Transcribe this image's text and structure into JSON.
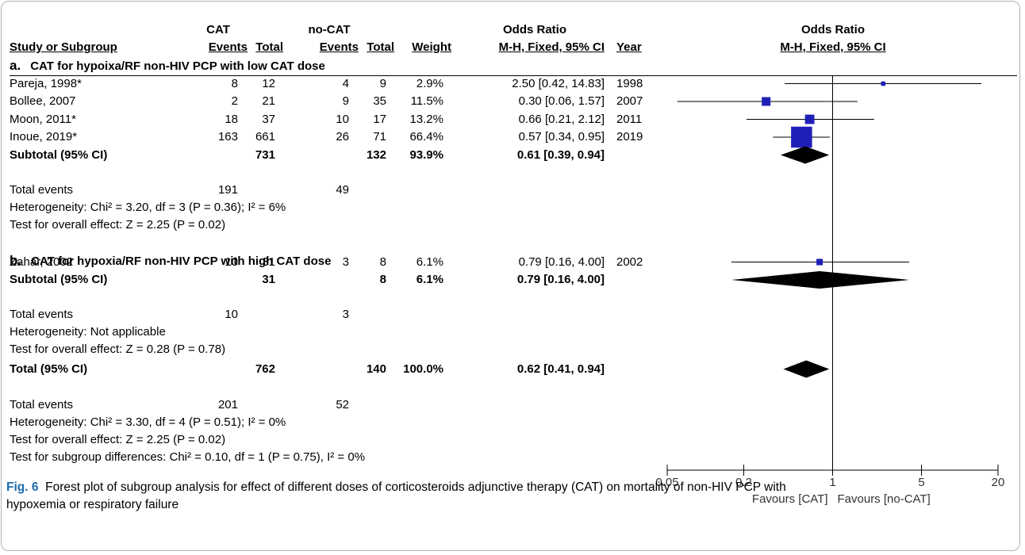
{
  "chart_data": {
    "type": "forest",
    "measure": "Odds Ratio",
    "method": "M-H, Fixed, 95% CI",
    "x_scale": "log",
    "xlim": [
      0.05,
      20
    ],
    "x_ticks": [
      "0.05",
      "0.2",
      "1",
      "5",
      "20"
    ],
    "x_tick_values": [
      0.05,
      0.2,
      1,
      5,
      20
    ],
    "favours_left": "Favours [CAT]",
    "favours_right": "Favours [no-CAT]",
    "colors": {
      "study_marker": "#1f1fb8",
      "diamond": "#000000",
      "ci_line": "#000000"
    },
    "studies": [
      {
        "name": "Pareja, 1998*",
        "e1": "8",
        "t1": "12",
        "e2": "4",
        "t2": "9",
        "weight": "2.9%",
        "ci_text": "2.50 [0.42, 14.83]",
        "year": "1998",
        "or": 2.5,
        "lo": 0.42,
        "hi": 14.83,
        "row": 3,
        "w": 2.9
      },
      {
        "name": "Bollee, 2007",
        "e1": "2",
        "t1": "21",
        "e2": "9",
        "t2": "35",
        "weight": "11.5%",
        "ci_text": "0.30 [0.06, 1.57]",
        "year": "2007",
        "or": 0.3,
        "lo": 0.06,
        "hi": 1.57,
        "row": 4,
        "w": 11.5
      },
      {
        "name": "Moon, 2011*",
        "e1": "18",
        "t1": "37",
        "e2": "10",
        "t2": "17",
        "weight": "13.2%",
        "ci_text": "0.66 [0.21, 2.12]",
        "year": "2011",
        "or": 0.66,
        "lo": 0.21,
        "hi": 2.12,
        "row": 5,
        "w": 13.2
      },
      {
        "name": "Inoue, 2019*",
        "e1": "163",
        "t1": "661",
        "e2": "26",
        "t2": "71",
        "weight": "66.4%",
        "ci_text": "0.57 [0.34, 0.95]",
        "year": "2019",
        "or": 0.57,
        "lo": 0.34,
        "hi": 0.95,
        "row": 6,
        "w": 66.4
      },
      {
        "name": "Zahar, 2002",
        "e1": "10",
        "t1": "31",
        "e2": "3",
        "t2": "8",
        "weight": "6.1%",
        "ci_text": "0.79 [0.16, 4.00]",
        "year": "2002",
        "or": 0.79,
        "lo": 0.16,
        "hi": 4.0,
        "row": 13,
        "w": 6.1
      }
    ],
    "diamonds": [
      {
        "name": "Subtotal (95% CI)",
        "t1": "731",
        "t2": "132",
        "weight": "93.9%",
        "ci_text": "0.61 [0.39, 0.94]",
        "or": 0.61,
        "lo": 0.39,
        "hi": 0.94,
        "row": 7
      },
      {
        "name": "Subtotal (95% CI)",
        "t1": "31",
        "t2": "8",
        "weight": "6.1%",
        "ci_text": "0.79 [0.16, 4.00]",
        "or": 0.79,
        "lo": 0.16,
        "hi": 4.0,
        "row": 14
      },
      {
        "name": "Total (95% CI)",
        "t1": "762",
        "t2": "140",
        "weight": "100.0%",
        "ci_text": "0.62 [0.41, 0.94]",
        "or": 0.62,
        "lo": 0.41,
        "hi": 0.94,
        "row": 19
      }
    ]
  },
  "table": {
    "header": {
      "cat": "CAT",
      "nocat": "no-CAT",
      "or_table": "Odds Ratio",
      "or_plot": "Odds Ratio",
      "study": "Study or Subgroup",
      "events1": "Events",
      "total1": "Total",
      "events2": "Events",
      "total2": "Total",
      "weight": "Weight",
      "method": "M-H, Fixed, 95% CI",
      "year": "Year",
      "method_plot": "M-H, Fixed, 95% CI"
    },
    "subgroup_a": {
      "letter": "a.",
      "title": "CAT for hypoixa/RF non-HIV PCP with low CAT dose",
      "total_events_label": "Total events",
      "total_events1": "191",
      "total_events2": "49",
      "heterogeneity": "Heterogeneity: Chi² = 3.20, df = 3 (P = 0.36); I² = 6%",
      "overall": "Test for overall effect: Z = 2.25 (P = 0.02)"
    },
    "subgroup_b": {
      "letter": "b.",
      "title": "CAT for hypoxia/RF non-HIV PCP with high CAT dose",
      "total_events_label": "Total events",
      "total_events1": "10",
      "total_events2": "3",
      "heterogeneity": "Heterogeneity: Not applicable",
      "overall": "Test for overall effect: Z = 0.28 (P = 0.78)"
    },
    "total": {
      "total_events_label": "Total events",
      "total_events1": "201",
      "total_events2": "52",
      "heterogeneity": "Heterogeneity: Chi² = 3.30, df = 4 (P = 0.51); I² = 0%",
      "overall": "Test for overall effect: Z = 2.25 (P = 0.02)",
      "subgroup_diff": "Test for subgroup differences: Chi² = 0.10, df = 1 (P = 0.75), I² = 0%"
    }
  },
  "caption": {
    "label": "Fig. 6",
    "line1": "Forest plot of subgroup analysis for effect of different doses of corticosteroids adjunctive therapy (CAT) on mortality of non-HIV PCP with",
    "line2": "hypoxemia or respiratory failure"
  }
}
